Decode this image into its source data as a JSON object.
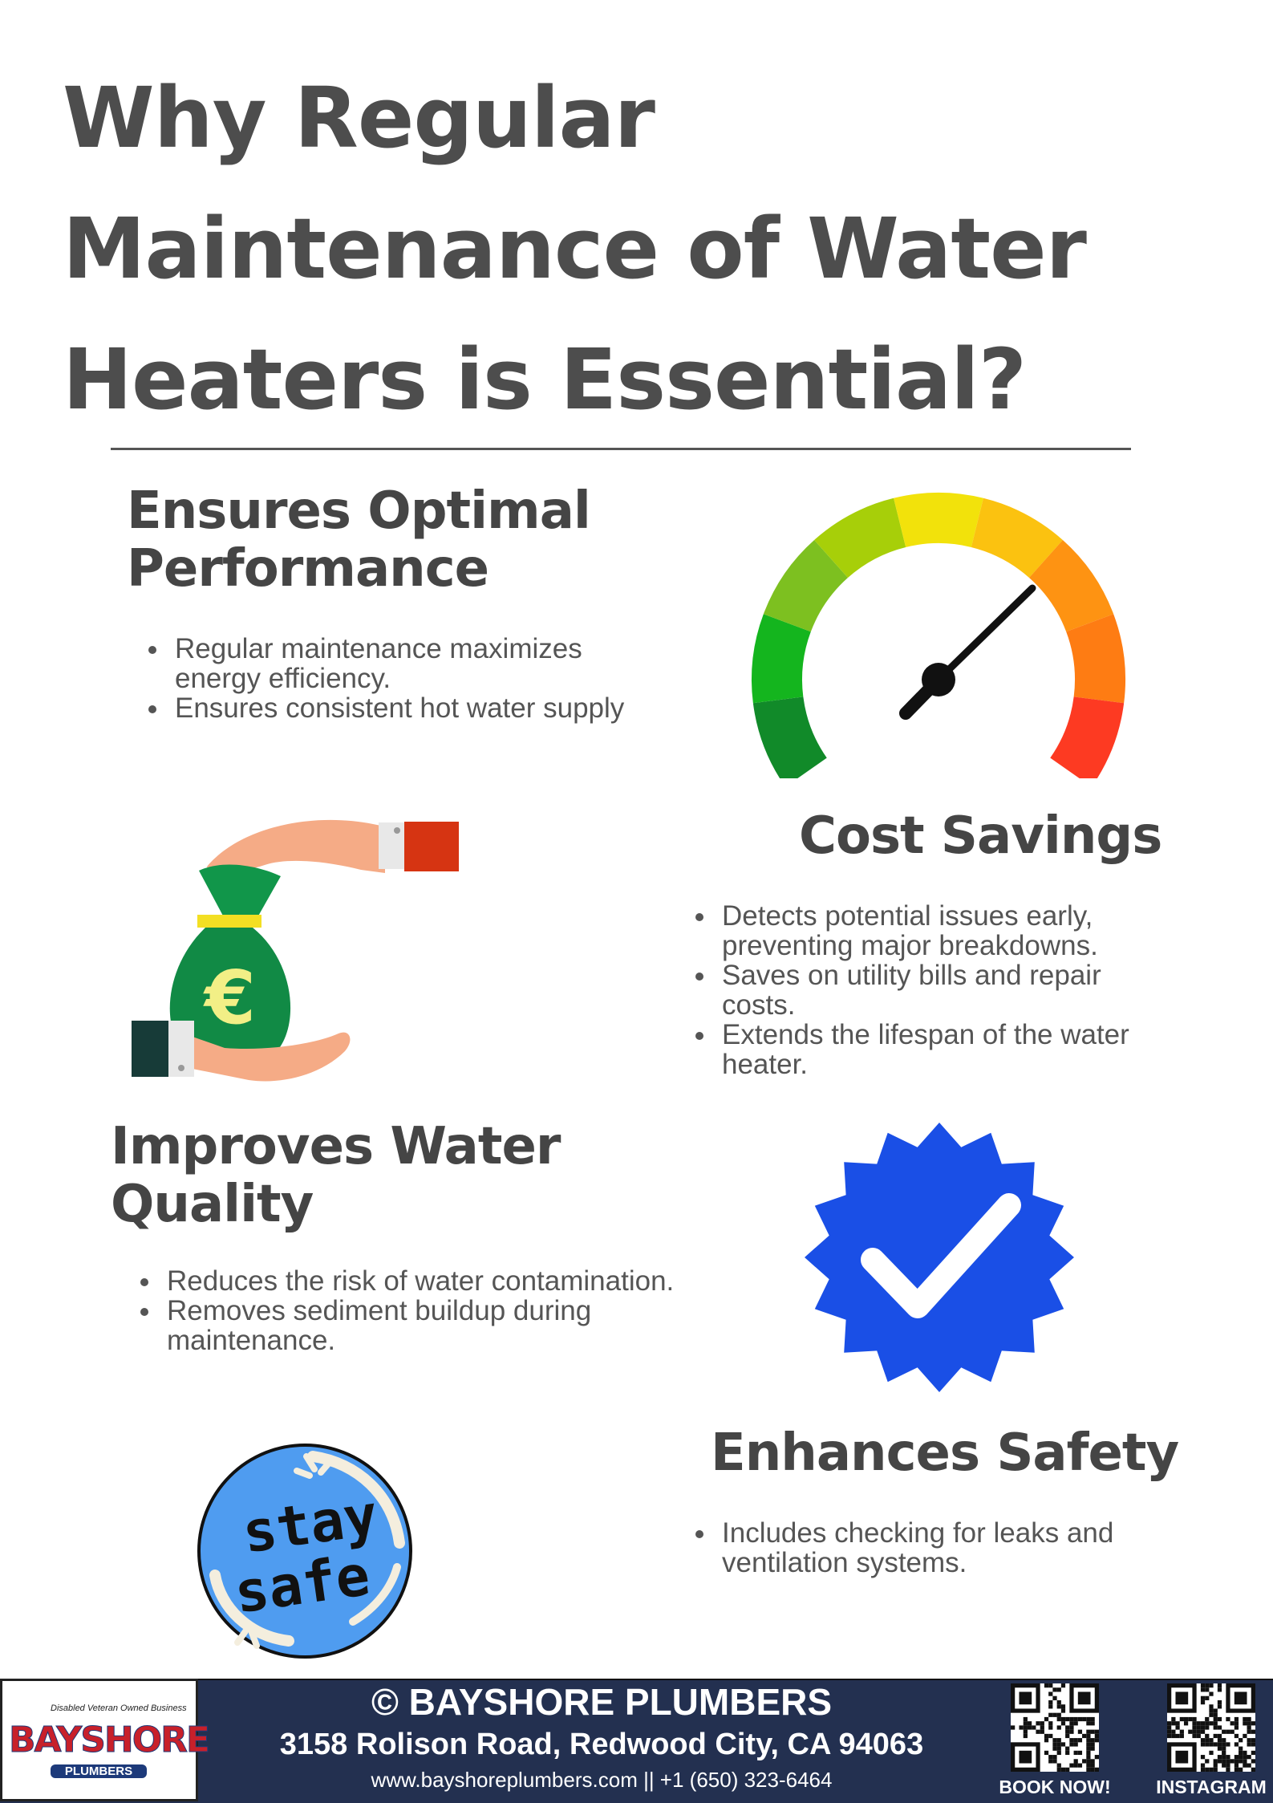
{
  "title_lines": [
    "Why Regular",
    "Maintenance of Water",
    "Heaters is Essential?"
  ],
  "sections": [
    {
      "heading_lines": [
        "Ensures Optimal",
        "Performance"
      ],
      "bullets": [
        "Regular maintenance maximizes energy efficiency.",
        "Ensures consistent hot water supply"
      ],
      "icon": "speedometer-gauge-icon"
    },
    {
      "heading_lines": [
        "Cost Savings"
      ],
      "bullets": [
        "Detects potential issues early, preventing major breakdowns.",
        "Saves on utility bills and repair costs.",
        "Extends the lifespan of the water heater."
      ],
      "icon": "money-bag-hands-icon",
      "icon_symbol": "€"
    },
    {
      "heading_lines": [
        "Improves Water",
        "Quality"
      ],
      "bullets": [
        "Reduces the risk of water contamination.",
        "Removes sediment buildup during maintenance."
      ],
      "icon": "verified-check-badge-icon"
    },
    {
      "heading_lines": [
        "Enhances Safety"
      ],
      "bullets": [
        "Includes checking for leaks and ventilation systems."
      ],
      "icon": "stay-safe-sticker-icon",
      "icon_text": [
        "stay",
        "safe"
      ]
    }
  ],
  "footer": {
    "company": "© BAYSHORE PLUMBERS",
    "address": "3158 Rolison Road, Redwood City, CA 94063",
    "contact": "www.bayshoreplumbers.com || +1 (650) 323-6464",
    "book_label": "BOOK NOW!",
    "instagram_label": "INSTAGRAM",
    "logo": {
      "tagline": "Disabled Veteran  Owned Business",
      "name": "BAYSHORE",
      "sub": "PLUMBERS"
    }
  },
  "colors": {
    "title": "#4d4d4d",
    "footer_bg": "#233050",
    "badge_blue": "#1a4fe6",
    "bag_green": "#118a45",
    "sticker_blue": "#4f9cf0"
  }
}
